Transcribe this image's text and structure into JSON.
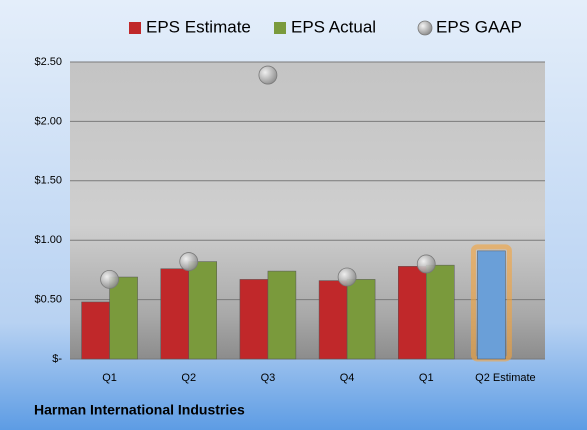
{
  "chart_data": {
    "type": "bar",
    "categories": [
      "Q1",
      "Q2",
      "Q3",
      "Q4",
      "Q1",
      "Q2 Estimate"
    ],
    "series": [
      {
        "name": "EPS Estimate",
        "color": "#c0282a",
        "values": [
          0.48,
          0.76,
          0.67,
          0.66,
          0.78,
          0.91
        ]
      },
      {
        "name": "EPS Actual",
        "color": "#7a9a3c",
        "values": [
          0.69,
          0.82,
          0.74,
          0.67,
          0.79,
          null
        ]
      },
      {
        "name": "EPS GAAP",
        "color": "#a8a8a8",
        "marker": "bubble",
        "values": [
          0.67,
          0.82,
          2.39,
          0.69,
          0.8,
          null
        ]
      }
    ],
    "highlight": {
      "index": 5,
      "color": "#6a9fd8",
      "glow": "#f5a33a"
    },
    "ylim": [
      0,
      2.5
    ],
    "yticks": [
      {
        "value": 0,
        "label": "$-"
      },
      {
        "value": 0.5,
        "label": "$0.50"
      },
      {
        "value": 1,
        "label": "$1.00"
      },
      {
        "value": 1.5,
        "label": "$1.50"
      },
      {
        "value": 2,
        "label": "$2.00"
      },
      {
        "value": 2.5,
        "label": "$2.50"
      }
    ],
    "grid": true,
    "footer": "Harman International Industries"
  }
}
